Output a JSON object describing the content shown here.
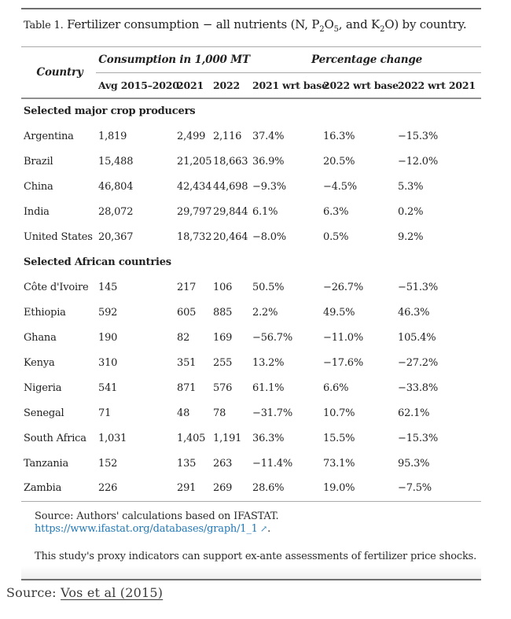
{
  "title": {
    "label": "Table 1.",
    "seg1": " Fertilizer consumption − all nutrients (N, P",
    "sub1": "2",
    "seg2": "O",
    "sub2": "5",
    "seg3": ", and K",
    "sub3": "2",
    "seg4": "O) by country."
  },
  "table": {
    "columns": {
      "country": "Country",
      "group1": "Consumption in 1,000 MT",
      "group2": "Percentage change",
      "sub1": "Avg 2015–2020",
      "sub2": "2021",
      "sub3": "2022",
      "sub4": "2021 wrt base",
      "sub5": "2022 wrt base",
      "sub6": "2022 wrt 2021"
    },
    "sections": [
      {
        "label": "Selected major crop producers",
        "rows": [
          [
            "Argentina",
            "1,819",
            "2,499",
            "2,116",
            "37.4%",
            "16.3%",
            "−15.3%"
          ],
          [
            "Brazil",
            "15,488",
            "21,205",
            "18,663",
            "36.9%",
            "20.5%",
            "−12.0%"
          ],
          [
            "China",
            "46,804",
            "42,434",
            "44,698",
            "−9.3%",
            "−4.5%",
            "5.3%"
          ],
          [
            "India",
            "28,072",
            "29,797",
            "29,844",
            "6.1%",
            "6.3%",
            "0.2%"
          ],
          [
            "United States",
            "20,367",
            "18,732",
            "20,464",
            "−8.0%",
            "0.5%",
            "9.2%"
          ]
        ]
      },
      {
        "label": "Selected African countries",
        "rows": [
          [
            "Côte d'Ivoire",
            "145",
            "217",
            "106",
            "50.5%",
            "−26.7%",
            "−51.3%"
          ],
          [
            "Ethiopia",
            "592",
            "605",
            "885",
            "2.2%",
            "49.5%",
            "46.3%"
          ],
          [
            "Ghana",
            "190",
            "82",
            "169",
            "−56.7%",
            "−11.0%",
            "105.4%"
          ],
          [
            "Kenya",
            "310",
            "351",
            "255",
            "13.2%",
            "−17.6%",
            "−27.2%"
          ],
          [
            "Nigeria",
            "541",
            "871",
            "576",
            "61.1%",
            "6.6%",
            "−33.8%"
          ],
          [
            "Senegal",
            "71",
            "48",
            "78",
            "−31.7%",
            "10.7%",
            "62.1%"
          ],
          [
            "South Africa",
            "1,031",
            "1,405",
            "1,191",
            "36.3%",
            "15.5%",
            "−15.3%"
          ],
          [
            "Tanzania",
            "152",
            "135",
            "263",
            "−11.4%",
            "73.1%",
            "95.3%"
          ],
          [
            "Zambia",
            "226",
            "291",
            "269",
            "28.6%",
            "19.0%",
            "−7.5%"
          ]
        ]
      }
    ],
    "footer": {
      "source_prefix": "Source: Authors' calculations based on IFASTAT. ",
      "source_link": "https://www.ifastat.org/databases/graph/1_1",
      "source_arrow": "↗",
      "source_suffix": ".",
      "note": "This study's proxy indicators can support ex-ante assessments of fertilizer price shocks."
    }
  },
  "caption": {
    "prefix": "Source: ",
    "link": "Vos et al (2015)"
  },
  "colors": {
    "link_blue": "#2178b5",
    "text": "#222222",
    "rule_light": "#a9a9a9",
    "rule_dark": "#6e6e6e"
  }
}
